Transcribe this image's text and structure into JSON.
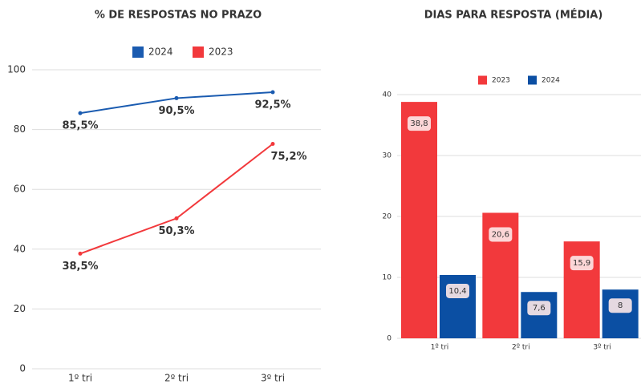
{
  "chart_data": [
    {
      "type": "line",
      "title": "% DE RESPOSTAS NO PRAZO",
      "categories": [
        "1º tri",
        "2º tri",
        "3º tri"
      ],
      "series": [
        {
          "name": "2024",
          "color": "#1a5bb0",
          "values": [
            85.5,
            90.5,
            92.5
          ],
          "value_labels": [
            "85,5%",
            "90,5%",
            "92,5%"
          ]
        },
        {
          "name": "2023",
          "color": "#f2393c",
          "values": [
            38.5,
            50.3,
            75.2
          ],
          "value_labels": [
            "38,5%",
            "50,3%",
            "75,2%"
          ]
        }
      ],
      "ylim": [
        0,
        100
      ],
      "yticks": [
        0,
        20,
        40,
        60,
        80,
        100
      ],
      "grid": true,
      "legend": "top"
    },
    {
      "type": "bar",
      "title": "DIAS PARA RESPOSTA (MÉDIA)",
      "categories": [
        "1º tri",
        "2º tri",
        "3º tri"
      ],
      "series": [
        {
          "name": "2023",
          "color": "#f2393c",
          "values": [
            38.8,
            20.6,
            15.9
          ],
          "value_labels": [
            "38,8",
            "20,6",
            "15,9"
          ]
        },
        {
          "name": "2024",
          "color": "#0b4fa3",
          "values": [
            10.4,
            7.6,
            8
          ],
          "value_labels": [
            "10,4",
            "7,6",
            "8"
          ]
        }
      ],
      "ylim": [
        0,
        40
      ],
      "yticks": [
        0,
        10,
        20,
        30,
        40
      ],
      "grid": true,
      "legend": "top"
    }
  ]
}
